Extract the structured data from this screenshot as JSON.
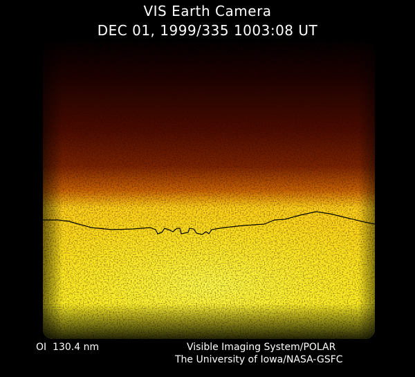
{
  "header": {
    "title": "VIS Earth Camera",
    "subtitle": "DEC 01, 1999/335 1003:08 UT"
  },
  "footer": {
    "filter": "OI  130.4 nm",
    "credit_line_1": "Visible Imaging System/POLAR",
    "credit_line_2": "The University of Iowa/NASA-GSFC"
  },
  "image": {
    "content": "earth-limb-airglow",
    "palette": [
      "#000000",
      "#3a0600",
      "#7a1e00",
      "#c85a00",
      "#ffd21a",
      "#ffff3c"
    ],
    "overlay_line_color": "#000000"
  }
}
